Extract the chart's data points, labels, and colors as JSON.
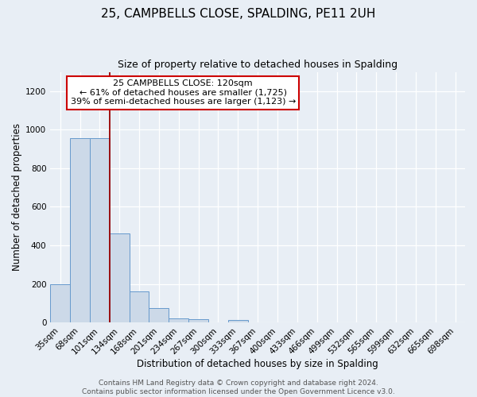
{
  "title": "25, CAMPBELLS CLOSE, SPALDING, PE11 2UH",
  "subtitle": "Size of property relative to detached houses in Spalding",
  "xlabel": "Distribution of detached houses by size in Spalding",
  "ylabel": "Number of detached properties",
  "bin_labels": [
    "35sqm",
    "68sqm",
    "101sqm",
    "134sqm",
    "168sqm",
    "201sqm",
    "234sqm",
    "267sqm",
    "300sqm",
    "333sqm",
    "367sqm",
    "400sqm",
    "433sqm",
    "466sqm",
    "499sqm",
    "532sqm",
    "565sqm",
    "599sqm",
    "632sqm",
    "665sqm",
    "698sqm"
  ],
  "bar_values": [
    200,
    955,
    955,
    460,
    160,
    75,
    22,
    17,
    0,
    12,
    0,
    0,
    0,
    0,
    0,
    0,
    0,
    0,
    0,
    0,
    0
  ],
  "bar_color": "#ccd9e8",
  "bar_edge_color": "#6699cc",
  "vline_color": "#990000",
  "ylim": [
    0,
    1300
  ],
  "yticks": [
    0,
    200,
    400,
    600,
    800,
    1000,
    1200
  ],
  "annotation_title": "25 CAMPBELLS CLOSE: 120sqm",
  "annotation_line1": "← 61% of detached houses are smaller (1,725)",
  "annotation_line2": "39% of semi-detached houses are larger (1,123) →",
  "annotation_box_color": "#ffffff",
  "annotation_box_edge": "#cc0000",
  "footer_line1": "Contains HM Land Registry data © Crown copyright and database right 2024.",
  "footer_line2": "Contains public sector information licensed under the Open Government Licence v3.0.",
  "background_color": "#e8eef5",
  "grid_color": "#ffffff",
  "title_fontsize": 11,
  "subtitle_fontsize": 9,
  "axis_label_fontsize": 8.5,
  "tick_fontsize": 7.5,
  "annotation_fontsize": 8,
  "footer_fontsize": 6.5
}
